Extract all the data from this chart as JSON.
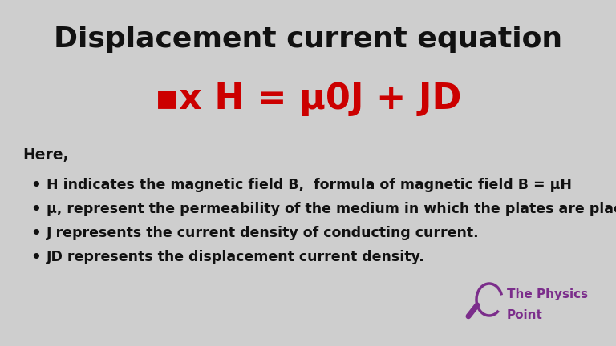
{
  "title": "Displacement current equation",
  "formula": "▪x H = μ0J + JD",
  "here_label": "Here,",
  "bullets": [
    "H indicates the magnetic field B,  formula of magnetic field B = μH",
    "μ, represent the permeability of the medium in which the plates are placed.",
    "J represents the current density of conducting current.",
    "JD represents the displacement current density."
  ],
  "bg_color": "#cecece",
  "title_color": "#111111",
  "formula_color": "#cc0000",
  "text_color": "#111111",
  "logo_color": "#7b2d8b",
  "logo_text1": "The Physics",
  "logo_text2": "Point",
  "title_fontsize": 26,
  "formula_fontsize": 32,
  "body_fontsize": 12.5,
  "here_fontsize": 13.5
}
